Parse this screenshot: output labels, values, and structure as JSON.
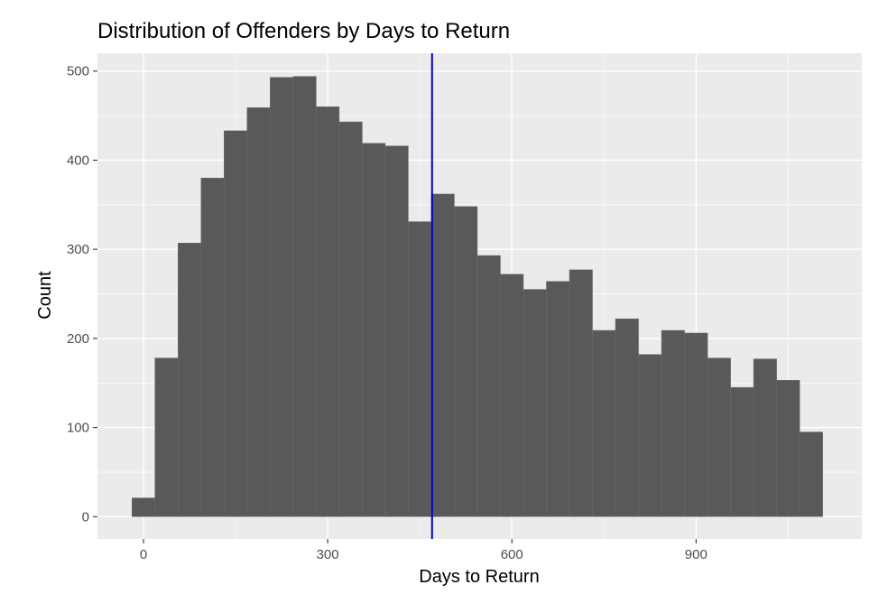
{
  "chart_data": {
    "type": "bar",
    "title": "Distribution of Offenders by Days to Return",
    "xlabel": "Days to Return",
    "ylabel": "Count",
    "bin_width": 37.5,
    "bin_centers": [
      0,
      37.5,
      75,
      112.5,
      150,
      187.5,
      225,
      262.5,
      300,
      337.5,
      375,
      412.5,
      450,
      487.5,
      525,
      562.5,
      600,
      637.5,
      675,
      712.5,
      750,
      787.5,
      825,
      862.5,
      900,
      937.5,
      975,
      1012.5,
      1050,
      1087.5
    ],
    "values": [
      21,
      178,
      307,
      380,
      433,
      459,
      493,
      494,
      460,
      443,
      419,
      416,
      331,
      362,
      348,
      293,
      272,
      255,
      264,
      277,
      209,
      222,
      182,
      209,
      206,
      178,
      145,
      177,
      153,
      95
    ],
    "xlim": [
      -75,
      1170
    ],
    "ylim": [
      -25,
      520
    ],
    "x_ticks": [
      0,
      300,
      600,
      900
    ],
    "x_tick_labels": [
      "0",
      "300",
      "600",
      "900"
    ],
    "y_ticks": [
      0,
      100,
      200,
      300,
      400,
      500
    ],
    "y_tick_labels": [
      "0",
      "100",
      "200",
      "300",
      "400",
      "500"
    ],
    "vline": {
      "x": 470,
      "color": "#0000cc"
    },
    "grid": true,
    "colors": {
      "bar_fill": "#595959",
      "bar_border": "#6b6b6b",
      "panel": "#ebebeb",
      "grid": "#ffffff"
    }
  }
}
